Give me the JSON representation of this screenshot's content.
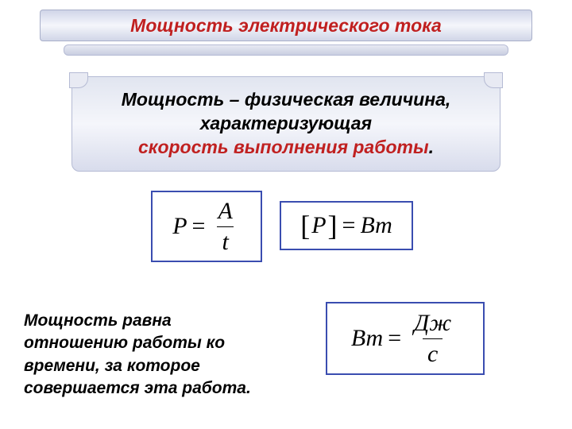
{
  "colors": {
    "title_text": "#c02020",
    "def_text": "#000000",
    "def_highlight": "#c02020",
    "formula1_border": "#3a4db0",
    "formula2_border": "#3a4db0",
    "formula3_border": "#3a4db0",
    "explanation_text": "#000000"
  },
  "title": "Мощность электрического тока",
  "definition": {
    "line1": "Мощность – физическая величина,",
    "line2": "характеризующая",
    "line3": "скорость выполнения работы",
    "dot": "."
  },
  "formula1": {
    "left": "P",
    "numerator": "A",
    "denominator": "t"
  },
  "formula2": {
    "left": "P",
    "right": "Вт"
  },
  "formula3": {
    "left": "Вт",
    "numerator": "Дж",
    "denominator": "с"
  },
  "explanation": {
    "l1": "Мощность равна",
    "l2": "отношению работы ко",
    "l3": "времени, за которое",
    "l4": "совершается эта работа."
  }
}
